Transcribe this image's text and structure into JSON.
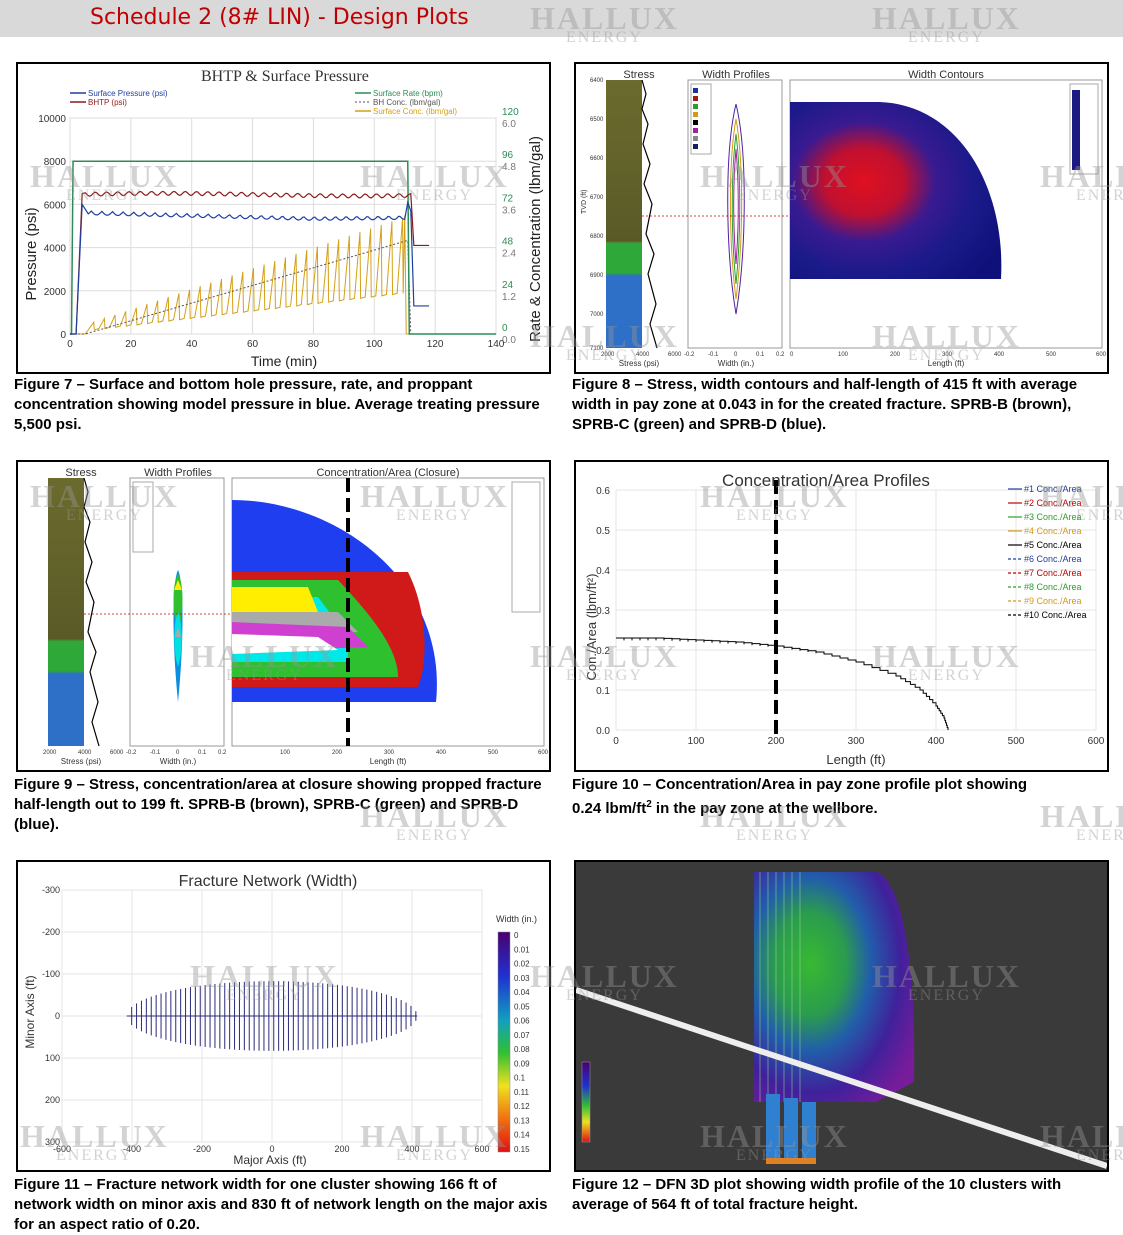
{
  "header": {
    "title": "Schedule 2 (8# LIN) - Design Plots"
  },
  "watermark": {
    "line1": "HALLUX",
    "line2": "ENERGY"
  },
  "fig7": {
    "title": "BHTP & Surface Pressure",
    "legend": [
      "Surface Pressure (psi)",
      "BHTP (psi)",
      "Surface Rate (bpm)",
      "BH Conc. (lbm/gal)",
      "Surface Conc. (lbm/gal)"
    ],
    "ylabel": "Pressure (psi)",
    "y2label": "Rate & Concentration (lbm/gal)",
    "xlabel": "Time (min)",
    "caption": "Figure 7 – Surface and bottom hole pressure, rate, and proppant concentration showing model pressure in blue. Average treating pressure 5,500 psi."
  },
  "fig8": {
    "stress_title": "Stress",
    "width_title": "Width Profiles",
    "contour_title": "Width Contours",
    "stress_x": "Stress (psi)",
    "width_x": "Width (in.)",
    "length_x": "Length (ft)",
    "tvd": "TVD (ft)",
    "caption": "Figure 8 – Stress, width contours and half-length of 415 ft with average width in pay zone at 0.043 in for the created fracture. SPRB-B (brown), SPRB-C (green) and SPRB-D (blue)."
  },
  "fig9": {
    "stress_title": "Stress",
    "width_title": "Width Profiles",
    "conc_title": "Concentration/Area (Closure)",
    "stress_x": "Stress (psi)",
    "width_x": "Width (in.)",
    "length_x": "Length (ft)",
    "caption": "Figure 9 – Stress, concentration/area at closure showing propped fracture half-length out to 199 ft.  SPRB-B (brown), SPRB-C (green) and SPRB-D (blue)."
  },
  "fig10": {
    "title": "Concentration/Area Profiles",
    "ylabel": "Con./Area (lbm/ft²)",
    "xlabel": "Length (ft)",
    "legend": [
      "#1 Conc./Area",
      "#2 Conc./Area",
      "#3 Conc./Area",
      "#4 Conc./Area",
      "#5 Conc./Area",
      "#6 Conc./Area",
      "#7 Conc./Area",
      "#8 Conc./Area",
      "#9 Conc./Area",
      "#10 Conc./Area"
    ],
    "caption_a": "Figure 10 – Concentration/Area in pay zone profile plot showing",
    "caption_b": "0.24 lbm/ft",
    "caption_sup": "2",
    "caption_c": " in the pay zone at the wellbore."
  },
  "fig11": {
    "title": "Fracture Network (Width)",
    "ylabel": "Minor Axis (ft)",
    "xlabel": "Major Axis (ft)",
    "colorbar_title": "Width (in.)",
    "colorbar_ticks": [
      "0",
      "0.01",
      "0.02",
      "0.03",
      "0.04",
      "0.05",
      "0.06",
      "0.07",
      "0.08",
      "0.09",
      "0.1",
      "0.11",
      "0.12",
      "0.13",
      "0.14",
      "0.15"
    ],
    "caption": "Figure 11 – Fracture network width for one cluster showing 166 ft of network width on minor axis and 830 ft of network length on the major axis for an aspect ratio of 0.20."
  },
  "fig12": {
    "caption": "Figure 12 – DFN 3D plot showing width profile of the 10 clusters with average of 564 ft of total fracture height."
  },
  "chart_data": [
    {
      "type": "line",
      "title": "BHTP & Surface Pressure",
      "xlabel": "Time (min)",
      "ylabel": "Pressure (psi)",
      "y2label": "Rate & Concentration (lbm/gal)",
      "xlim": [
        0,
        140
      ],
      "ylim": [
        0,
        10000
      ],
      "y2lim_rate": [
        0,
        120
      ],
      "y2lim_conc": [
        0,
        6
      ],
      "xticks": [
        0,
        20,
        40,
        60,
        80,
        100,
        120,
        140
      ],
      "yticks": [
        0,
        2000,
        4000,
        6000,
        8000,
        10000
      ],
      "y2ticks_rate": [
        0,
        24,
        48,
        72,
        96,
        120
      ],
      "y2ticks_conc": [
        "0.0",
        "1.2",
        "2.4",
        "3.6",
        "4.8",
        "6.0"
      ],
      "series": [
        {
          "name": "Surface Pressure (psi)",
          "color": "#1f3fa0",
          "x": [
            0,
            2,
            5,
            20,
            40,
            60,
            80,
            100,
            110,
            112,
            113,
            114,
            118
          ],
          "y": [
            0,
            0,
            6000,
            5600,
            5400,
            5300,
            5300,
            5400,
            6000,
            5800,
            1500,
            1300,
            1300
          ]
        },
        {
          "name": "BHTP (psi)",
          "color": "#8b1a1a",
          "x": [
            0,
            2,
            5,
            20,
            40,
            60,
            80,
            100,
            111,
            112,
            113,
            114,
            118
          ],
          "y": [
            0,
            0,
            6500,
            6500,
            6450,
            6400,
            6400,
            6450,
            6600,
            6500,
            4100,
            4100,
            4100
          ]
        },
        {
          "name": "Surface Rate (bpm)",
          "color": "#2e8b57",
          "x": [
            0,
            0.5,
            1,
            111,
            111.5,
            140
          ],
          "y": [
            0,
            0,
            96,
            96,
            0,
            0
          ]
        },
        {
          "name": "BH Conc. (lbm/gal)",
          "color": "#555555",
          "x": [
            0,
            5,
            111,
            112,
            140
          ],
          "y": [
            0,
            0,
            2.6,
            0,
            0
          ]
        },
        {
          "name": "Surface Conc. (lbm/gal)",
          "color": "#d4a017",
          "x": [
            0,
            5,
            110,
            110.5,
            140
          ],
          "y": [
            0,
            0,
            3.3,
            0,
            0
          ]
        }
      ]
    },
    {
      "type": "line",
      "title": "Concentration/Area Profiles",
      "xlabel": "Length (ft)",
      "ylabel": "Con./Area (lbm/ft²)",
      "xlim": [
        0,
        600
      ],
      "ylim": [
        0,
        0.6
      ],
      "xticks": [
        0,
        100,
        200,
        300,
        400,
        500,
        600
      ],
      "yticks": [
        0.0,
        0.1,
        0.2,
        0.3,
        0.4,
        0.5,
        0.6
      ],
      "series": [
        {
          "name": "#10 Conc./Area",
          "color": "#000000",
          "x": [
            0,
            50,
            100,
            150,
            200,
            250,
            300,
            350,
            380,
            400,
            410,
            415
          ],
          "y": [
            0.23,
            0.23,
            0.225,
            0.22,
            0.21,
            0.195,
            0.17,
            0.135,
            0.1,
            0.06,
            0.03,
            0.0
          ]
        }
      ]
    },
    {
      "type": "bar",
      "title": "Fracture Network (Width)",
      "xlabel": "Major Axis (ft)",
      "ylabel": "Minor Axis (ft)",
      "xlim": [
        -600,
        600
      ],
      "ylim": [
        -300,
        300
      ],
      "xticks": [
        -600,
        -400,
        -200,
        0,
        200,
        400,
        600
      ],
      "yticks": [
        -300,
        -200,
        -100,
        0,
        100,
        200,
        300
      ],
      "network_length_ft": 830,
      "network_width_ft": 166
    }
  ]
}
